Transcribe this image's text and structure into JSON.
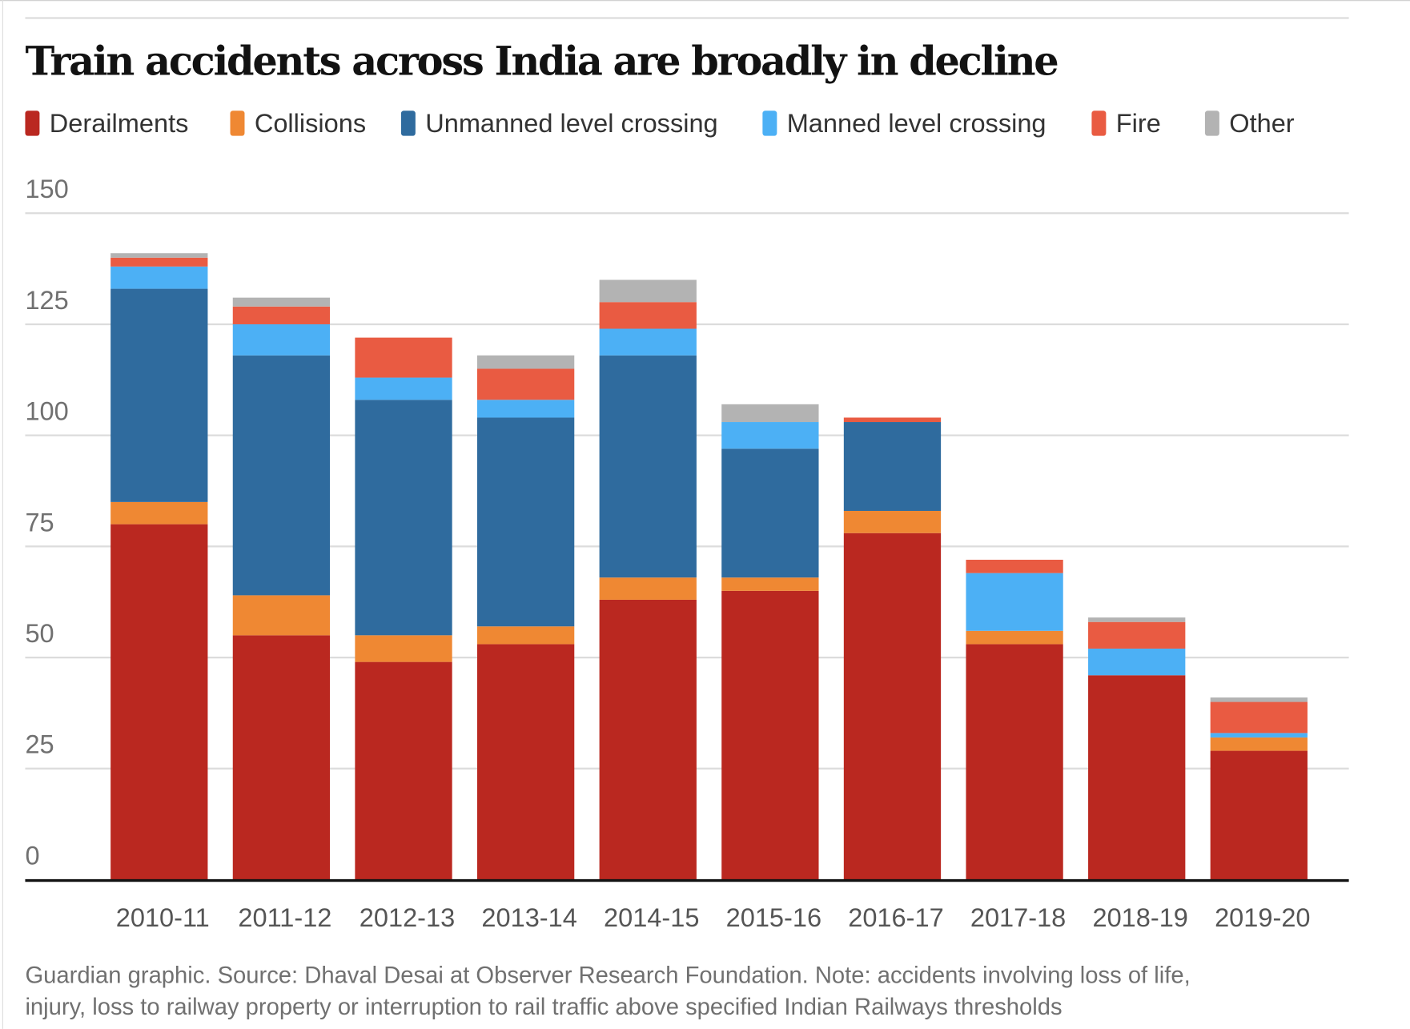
{
  "chart_data": {
    "type": "bar",
    "stacked": true,
    "title": "Train accidents across India are broadly in decline",
    "xlabel": "",
    "ylabel": "",
    "ylim": [
      0,
      150
    ],
    "yticks": [
      0,
      25,
      50,
      75,
      100,
      125,
      150
    ],
    "grid": true,
    "legend_placement": "top",
    "categories": [
      "2010-11",
      "2011-12",
      "2012-13",
      "2013-14",
      "2014-15",
      "2015-16",
      "2016-17",
      "2017-18",
      "2018-19",
      "2019-20"
    ],
    "series": [
      {
        "name": "Derailments",
        "color": "#ba2820",
        "values": [
          80,
          55,
          49,
          53,
          63,
          65,
          78,
          53,
          46,
          29
        ]
      },
      {
        "name": "Collisions",
        "color": "#ef8833",
        "values": [
          5,
          9,
          6,
          4,
          5,
          3,
          5,
          3,
          0,
          3
        ]
      },
      {
        "name": "Unmanned level crossing",
        "color": "#2f6b9e",
        "values": [
          48,
          54,
          53,
          47,
          50,
          29,
          20,
          0,
          0,
          0
        ]
      },
      {
        "name": "Manned level crossing",
        "color": "#4cb0f5",
        "values": [
          5,
          7,
          5,
          4,
          6,
          6,
          0,
          13,
          6,
          1
        ]
      },
      {
        "name": "Fire",
        "color": "#e95b42",
        "values": [
          2,
          4,
          9,
          7,
          6,
          0,
          1,
          3,
          6,
          7
        ]
      },
      {
        "name": "Other",
        "color": "#b3b3b3",
        "values": [
          1,
          2,
          0,
          3,
          5,
          4,
          0,
          0,
          1,
          1
        ]
      }
    ],
    "source_note": "Guardian graphic. Source: Dhaval Desai at Observer Research Foundation. Note: accidents involving loss of life, injury, loss to railway property or interruption to rail traffic above specified Indian Railways thresholds",
    "source_note_lines": [
      "Guardian graphic. Source: Dhaval Desai at Observer Research Foundation. Note: accidents involving loss of life,",
      "injury, loss to railway property or interruption to rail traffic above specified Indian Railways thresholds"
    ]
  }
}
